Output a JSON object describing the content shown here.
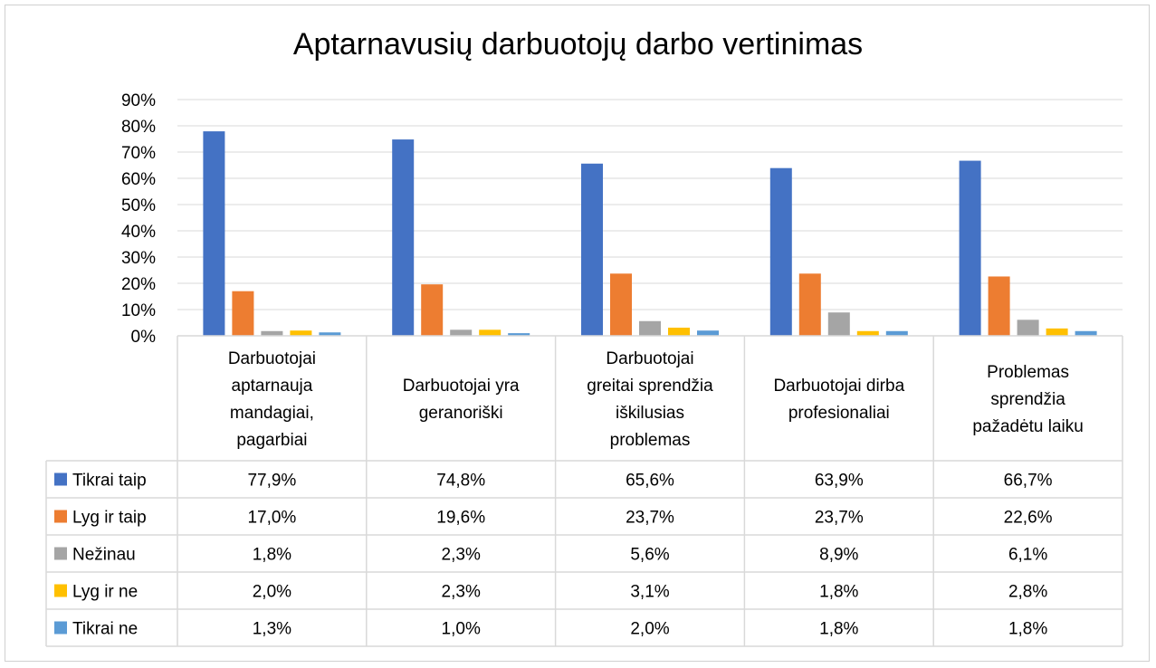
{
  "chart_data": {
    "type": "bar",
    "title": "Aptarnavusių darbuotojų darbo vertinimas",
    "categories": [
      "Darbuotojai aptarnauja mandagiai, pagarbiai",
      "Darbuotojai yra geranoriški",
      "Darbuotojai greitai sprendžia iškilusias problemas",
      "Darbuotojai dirba profesionaliai",
      "Problemas sprendžia pažadėtu laiku"
    ],
    "category_lines": [
      [
        "Darbuotojai",
        "aptarnauja",
        "mandagiai,",
        "pagarbiai"
      ],
      [
        "Darbuotojai yra",
        "geranoriški"
      ],
      [
        "Darbuotojai",
        "greitai sprendžia",
        "iškilusias",
        "problemas"
      ],
      [
        "Darbuotojai dirba",
        "profesionaliai"
      ],
      [
        "Problemas",
        "sprendžia",
        "pažadėtu laiku"
      ]
    ],
    "series": [
      {
        "name": "Tikrai taip",
        "color": "#4472C4",
        "values": [
          77.9,
          74.8,
          65.6,
          63.9,
          66.7
        ],
        "labels": [
          "77,9%",
          "74,8%",
          "65,6%",
          "63,9%",
          "66,7%"
        ]
      },
      {
        "name": "Lyg ir taip",
        "color": "#ED7D31",
        "values": [
          17.0,
          19.6,
          23.7,
          23.7,
          22.6
        ],
        "labels": [
          "17,0%",
          "19,6%",
          "23,7%",
          "23,7%",
          "22,6%"
        ]
      },
      {
        "name": "Nežinau",
        "color": "#A5A5A5",
        "values": [
          1.8,
          2.3,
          5.6,
          8.9,
          6.1
        ],
        "labels": [
          "1,8%",
          "2,3%",
          "5,6%",
          "8,9%",
          "6,1%"
        ]
      },
      {
        "name": "Lyg ir ne",
        "color": "#FFC000",
        "values": [
          2.0,
          2.3,
          3.1,
          1.8,
          2.8
        ],
        "labels": [
          "2,0%",
          "2,3%",
          "3,1%",
          "1,8%",
          "2,8%"
        ]
      },
      {
        "name": "Tikrai ne",
        "color": "#5B9BD5",
        "values": [
          1.3,
          1.0,
          2.0,
          1.8,
          1.8
        ],
        "labels": [
          "1,3%",
          "1,0%",
          "2,0%",
          "1,8%",
          "1,8%"
        ]
      }
    ],
    "y_ticks": [
      "0%",
      "10%",
      "20%",
      "30%",
      "40%",
      "50%",
      "60%",
      "70%",
      "80%",
      "90%"
    ],
    "ylim": [
      0,
      90
    ],
    "grid": true,
    "legend": "data table"
  }
}
